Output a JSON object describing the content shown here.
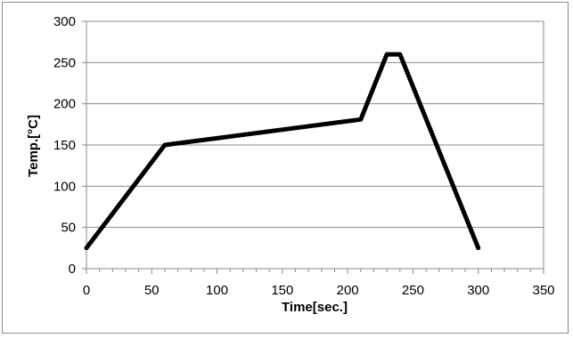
{
  "chart_data": {
    "type": "line",
    "title": "",
    "xlabel": "Time[sec.]",
    "ylabel": "Temp.[°C]",
    "xlim": [
      0,
      350
    ],
    "ylim": [
      0,
      300
    ],
    "x_ticks": [
      0,
      50,
      100,
      150,
      200,
      250,
      300,
      350
    ],
    "y_ticks": [
      0,
      50,
      100,
      150,
      200,
      250,
      300
    ],
    "x_tick_labels": [
      "0",
      "50",
      "100",
      "150",
      "200",
      "250",
      "300",
      "350"
    ],
    "y_tick_labels": [
      "0",
      "50",
      "100",
      "150",
      "200",
      "250",
      "300"
    ],
    "grid": "horizontal",
    "legend": "none",
    "series": [
      {
        "color": "#000000",
        "points": [
          [
            0,
            25
          ],
          [
            60,
            150
          ],
          [
            210,
            181
          ],
          [
            230,
            260
          ],
          [
            240,
            260
          ],
          [
            300,
            25
          ]
        ]
      }
    ]
  }
}
